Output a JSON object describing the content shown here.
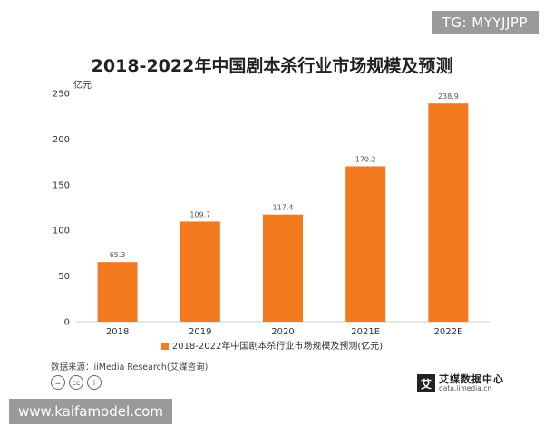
{
  "badge": "TG: MYYJJPP",
  "watermark": "www.kaifamodel.com",
  "source": "数据来源：iiMedia Research(艾媒咨询)",
  "cc_icons": [
    "=",
    "cc",
    "i"
  ],
  "brand": {
    "mark": "艾",
    "name": "艾媒数据中心",
    "url": "data.iimedia.cn"
  },
  "chart_data": {
    "type": "bar",
    "title": "2018-2022年中国剧本杀行业市场规模及预测",
    "ylabel": "亿元",
    "categories": [
      "2018",
      "2019",
      "2020",
      "2021E",
      "2022E"
    ],
    "series": [
      {
        "name": "2018-2022年中国剧本杀行业市场规模及预测(亿元)",
        "values": [
          65.3,
          109.7,
          117.4,
          170.2,
          238.9
        ]
      }
    ],
    "value_labels": [
      "65.3",
      "109.7",
      "117.4",
      "170.2",
      "238.9"
    ],
    "yticks": [
      0,
      50,
      100,
      150,
      200,
      250
    ],
    "ylim": [
      0,
      250
    ],
    "color": "#f47a20",
    "grid": false,
    "legend_position": "bottom"
  }
}
